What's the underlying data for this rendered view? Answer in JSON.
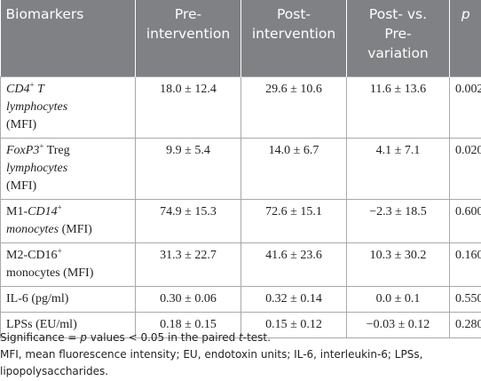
{
  "table": {
    "header": [
      [
        "Biomarkers"
      ],
      [
        "Pre-",
        "intervention"
      ],
      [
        "Post-",
        "intervention"
      ],
      [
        "Post- vs.",
        "Pre-",
        "variation"
      ],
      [
        "p"
      ]
    ],
    "rows": [
      {
        "label": [
          "CD4",
          "+",
          "T",
          "lymphocytes",
          "(MFI)"
        ],
        "cells": [
          "18.0 ± 12.4",
          "29.6 ± 10.6",
          "11.6 ± 13.6",
          "0.002"
        ]
      },
      {
        "label": [
          "FoxP3",
          "+",
          "Treg",
          "lymphocytes",
          "(MFI)"
        ],
        "cells": [
          "9.9 ± 5.4",
          "14.0 ± 6.7",
          "4.1 ± 7.1",
          "0.020"
        ]
      },
      {
        "label": [
          "M1-",
          "CD14",
          "+",
          "monocytes",
          "(MFI)"
        ],
        "cells": [
          "74.9 ± 15.3",
          "72.6 ± 15.1",
          "−2.3 ± 18.5",
          "0.600"
        ]
      },
      {
        "label": [
          "M2-CD16",
          "+",
          "monocytes (MFI)"
        ],
        "cells": [
          "31.3 ± 22.7",
          "41.6 ± 23.6",
          "10.3 ± 30.2",
          "0.160"
        ]
      },
      {
        "label": [
          "IL-6 (pg/ml)"
        ],
        "cells": [
          "0.30 ± 0.06",
          "0.32 ± 0.14",
          "0.0 ± 0.1",
          "0.550"
        ]
      },
      {
        "label": [
          "LPSs (EU/ml)"
        ],
        "cells": [
          "0.18 ± 0.15",
          "0.15 ± 0.12",
          "−0.03 ± 0.12",
          "0.280"
        ]
      }
    ]
  },
  "footnotes": [
    [
      "Significance = ",
      "p",
      " values < 0.05 in the paired ",
      "t",
      "-test."
    ],
    [
      "MFI, mean fluorescence intensity; EU, endotoxin units; IL-6, interleukin-6; LPSs, lipopolysaccharides."
    ]
  ]
}
